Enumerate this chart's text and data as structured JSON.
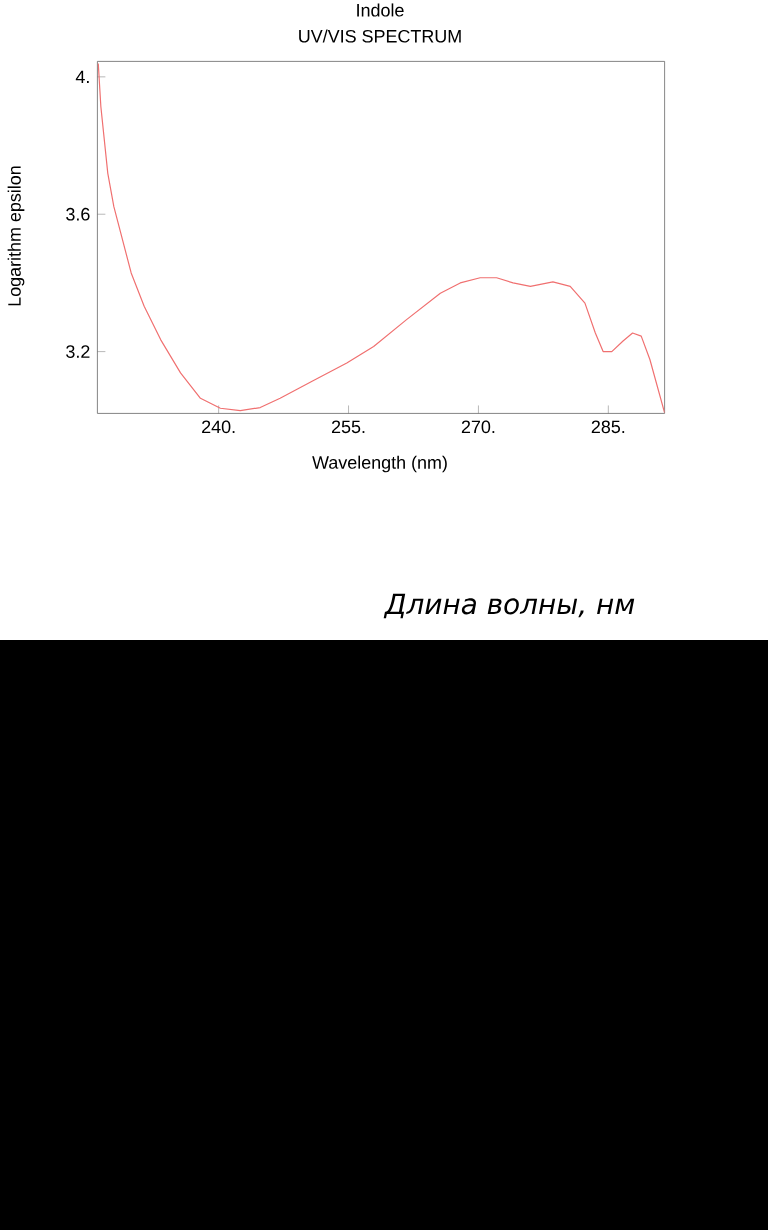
{
  "chart_data": {
    "type": "line",
    "title": "Indole",
    "subtitle": "UV/VIS SPECTRUM",
    "xlabel": "Wavelength (nm)",
    "ylabel": "Logarithm epsilon",
    "annotations": [
      "Длина волны, нм"
    ],
    "xlim": [
      226,
      291.5
    ],
    "ylim": [
      3.02,
      4.045
    ],
    "xticks": [
      {
        "value": 240,
        "label": "240."
      },
      {
        "value": 255,
        "label": "255."
      },
      {
        "value": 270,
        "label": "270."
      },
      {
        "value": 285,
        "label": "285."
      }
    ],
    "yticks": [
      {
        "value": 3.2,
        "label": "3.2"
      },
      {
        "value": 3.6,
        "label": "3.6"
      },
      {
        "value": 4.0,
        "label": "4."
      }
    ],
    "grid": false,
    "marker": "none",
    "line_style": "solid",
    "series": [
      {
        "color": "#f07070",
        "x": [
          226.1,
          226.4,
          227.2,
          227.9,
          228.7,
          229.9,
          231.4,
          233.3,
          235.6,
          237.9,
          240.2,
          242.5,
          244.8,
          247.1,
          250.9,
          254.8,
          257.9,
          261.7,
          265.6,
          267.9,
          270.2,
          272.1,
          274.0,
          276.0,
          278.6,
          280.6,
          282.3,
          283.5,
          284.4,
          285.4,
          286.7,
          287.8,
          288.8,
          289.8,
          291.5
        ],
        "values": [
          4.039,
          3.913,
          3.719,
          3.622,
          3.545,
          3.429,
          3.332,
          3.235,
          3.138,
          3.064,
          3.035,
          3.028,
          3.037,
          3.064,
          3.115,
          3.167,
          3.215,
          3.293,
          3.37,
          3.4,
          3.415,
          3.415,
          3.4,
          3.39,
          3.403,
          3.39,
          3.341,
          3.254,
          3.2,
          3.2,
          3.231,
          3.254,
          3.245,
          3.177,
          3.022
        ]
      }
    ]
  }
}
